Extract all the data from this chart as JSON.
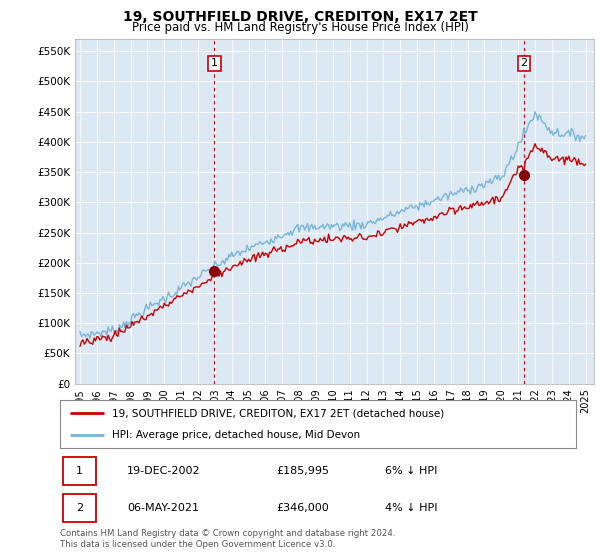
{
  "title": "19, SOUTHFIELD DRIVE, CREDITON, EX17 2ET",
  "subtitle": "Price paid vs. HM Land Registry's House Price Index (HPI)",
  "ylim": [
    0,
    570000
  ],
  "yticks": [
    0,
    50000,
    100000,
    150000,
    200000,
    250000,
    300000,
    350000,
    400000,
    450000,
    500000,
    550000
  ],
  "x_start_year": 1995,
  "x_end_year": 2025,
  "transaction1": {
    "price": 185995,
    "label": "1",
    "x": 2002.97
  },
  "transaction2": {
    "price": 346000,
    "label": "2",
    "x": 2021.34
  },
  "legend_entry1": "19, SOUTHFIELD DRIVE, CREDITON, EX17 2ET (detached house)",
  "legend_entry2": "HPI: Average price, detached house, Mid Devon",
  "table_row1": [
    "1",
    "19-DEC-2002",
    "£185,995",
    "6% ↓ HPI"
  ],
  "table_row2": [
    "2",
    "06-MAY-2021",
    "£346,000",
    "4% ↓ HPI"
  ],
  "footnote": "Contains HM Land Registry data © Crown copyright and database right 2024.\nThis data is licensed under the Open Government Licence v3.0.",
  "hpi_color": "#7ab4d8",
  "price_color": "#cc0000",
  "vline_color": "#cc0000",
  "bg_color": "#ffffff",
  "plot_bg_color": "#dce9f5",
  "grid_color": "#ffffff"
}
